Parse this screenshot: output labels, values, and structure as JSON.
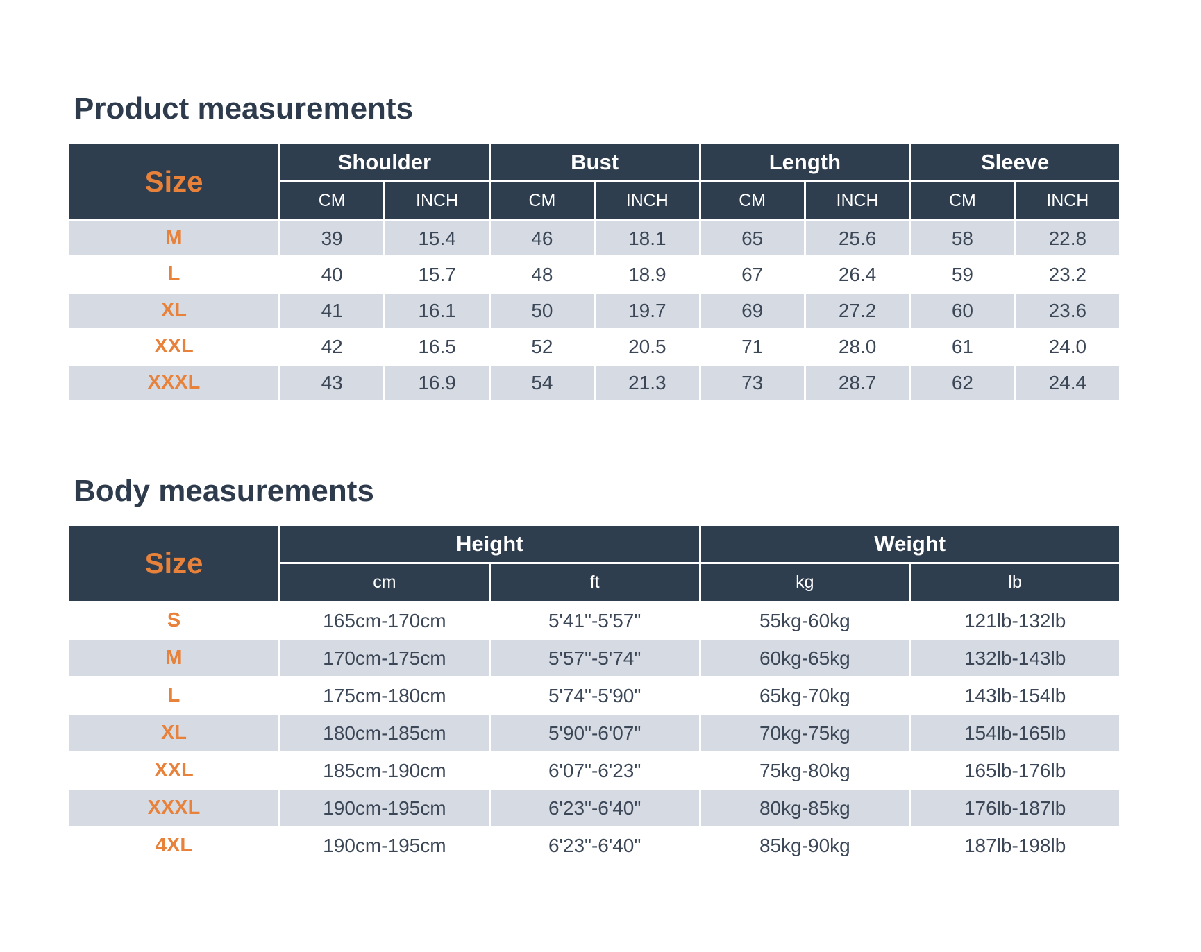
{
  "colors": {
    "page_background": "#ffffff",
    "header_background": "#2f3e4f",
    "banded_row_background": "#d6dae2",
    "plain_row_background": "#ffffff",
    "accent_orange": "#e8813a",
    "header_text": "#ffffff",
    "body_text": "#3b4757",
    "title_text": "#2e3b4d",
    "cell_border": "#ffffff"
  },
  "product_table": {
    "title": "Product measurements",
    "size_header": "Size",
    "groups": [
      {
        "label": "Shoulder",
        "units": [
          "CM",
          "INCH"
        ]
      },
      {
        "label": "Bust",
        "units": [
          "CM",
          "INCH"
        ]
      },
      {
        "label": "Length",
        "units": [
          "CM",
          "INCH"
        ]
      },
      {
        "label": "Sleeve",
        "units": [
          "CM",
          "INCH"
        ]
      }
    ],
    "rows": [
      {
        "size": "M",
        "values": [
          "39",
          "15.4",
          "46",
          "18.1",
          "65",
          "25.6",
          "58",
          "22.8"
        ]
      },
      {
        "size": "L",
        "values": [
          "40",
          "15.7",
          "48",
          "18.9",
          "67",
          "26.4",
          "59",
          "23.2"
        ]
      },
      {
        "size": "XL",
        "values": [
          "41",
          "16.1",
          "50",
          "19.7",
          "69",
          "27.2",
          "60",
          "23.6"
        ]
      },
      {
        "size": "XXL",
        "values": [
          "42",
          "16.5",
          "52",
          "20.5",
          "71",
          "28.0",
          "61",
          "24.0"
        ]
      },
      {
        "size": "XXXL",
        "values": [
          "43",
          "16.9",
          "54",
          "21.3",
          "73",
          "28.7",
          "62",
          "24.4"
        ]
      }
    ]
  },
  "body_table": {
    "title": "Body measurements",
    "size_header": "Size",
    "groups": [
      {
        "label": "Height",
        "units": [
          "cm",
          "ft"
        ]
      },
      {
        "label": "Weight",
        "units": [
          "kg",
          "lb"
        ]
      }
    ],
    "rows": [
      {
        "size": "S",
        "values": [
          "165cm-170cm",
          "5'41\"-5'57\"",
          "55kg-60kg",
          "121lb-132lb"
        ]
      },
      {
        "size": "M",
        "values": [
          "170cm-175cm",
          "5'57\"-5'74\"",
          "60kg-65kg",
          "132lb-143lb"
        ]
      },
      {
        "size": "L",
        "values": [
          "175cm-180cm",
          "5'74\"-5'90\"",
          "65kg-70kg",
          "143lb-154lb"
        ]
      },
      {
        "size": "XL",
        "values": [
          "180cm-185cm",
          "5'90\"-6'07\"",
          "70kg-75kg",
          "154lb-165lb"
        ]
      },
      {
        "size": "XXL",
        "values": [
          "185cm-190cm",
          "6'07\"-6'23\"",
          "75kg-80kg",
          "165lb-176lb"
        ]
      },
      {
        "size": "XXXL",
        "values": [
          "190cm-195cm",
          "6'23\"-6'40\"",
          "80kg-85kg",
          "176lb-187lb"
        ]
      },
      {
        "size": "4XL",
        "values": [
          "190cm-195cm",
          "6'23\"-6'40\"",
          "85kg-90kg",
          "187lb-198lb"
        ]
      }
    ]
  }
}
